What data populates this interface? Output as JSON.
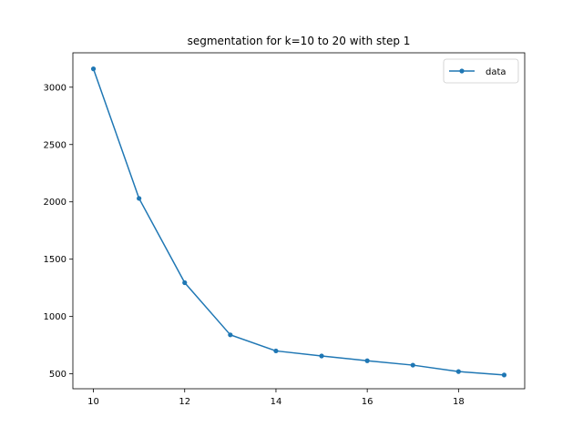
{
  "chart_data": {
    "type": "line",
    "title": "segmentation for k=10 to 20 with step 1",
    "xlabel": "",
    "ylabel": "",
    "xlim": [
      9.55,
      19.45
    ],
    "ylim": [
      370,
      3300
    ],
    "x_ticks": [
      10,
      12,
      14,
      16,
      18
    ],
    "y_ticks": [
      500,
      1000,
      1500,
      2000,
      2500,
      3000
    ],
    "grid": false,
    "legend_position": "top-right",
    "series": [
      {
        "name": "data",
        "color": "#1f77b4",
        "marker": "dot",
        "x": [
          10,
          11,
          12,
          13,
          14,
          15,
          16,
          17,
          18,
          19
        ],
        "y": [
          3160,
          2030,
          1295,
          840,
          700,
          656,
          614,
          576,
          520,
          490
        ]
      }
    ]
  }
}
